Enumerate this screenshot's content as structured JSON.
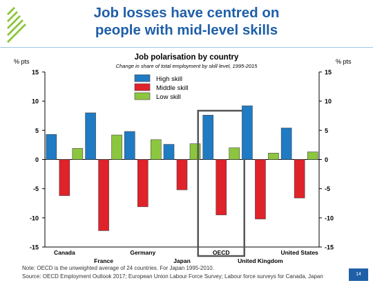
{
  "slide": {
    "title_line1": "Job losses have centred on",
    "title_line2": "people with mid-level skills",
    "note": "Note: OECD is the unweighted average of 24 countries. For Japan 1995-2010.",
    "source": "Source: OECD Employment Outlook 2017; European Union Labour Force Survey; Labour force surveys for Canada, Japan",
    "page_number": "14"
  },
  "colors": {
    "high": "#1f7bc4",
    "middle": "#e0222a",
    "low": "#8cc63e",
    "title": "#1f5fa8",
    "highlight_box": "#555555"
  },
  "chart_data": {
    "type": "bar",
    "title": "Job polarisation by country",
    "subtitle": "Change in share of total employment by skill level, 1995-2015",
    "ylabel_left": "% pts",
    "ylabel_right": "% pts",
    "ylim": [
      -15,
      15
    ],
    "yticks": [
      15,
      10,
      5,
      0,
      -5,
      -10,
      -15
    ],
    "categories": [
      "Canada",
      "France",
      "Germany",
      "Japan",
      "OECD",
      "United Kingdom",
      "United States"
    ],
    "highlight_category": "OECD",
    "legend_position": "top-center",
    "series": [
      {
        "name": "High skill",
        "color_key": "high",
        "values": [
          4.3,
          8.0,
          4.8,
          2.6,
          7.6,
          9.2,
          5.4
        ]
      },
      {
        "name": "Middle skill",
        "color_key": "middle",
        "values": [
          -6.2,
          -12.2,
          -8.1,
          -5.2,
          -9.5,
          -10.2,
          -6.6
        ]
      },
      {
        "name": "Low skill",
        "color_key": "low",
        "values": [
          1.9,
          4.2,
          3.4,
          2.7,
          2.0,
          1.1,
          1.3
        ]
      }
    ]
  }
}
